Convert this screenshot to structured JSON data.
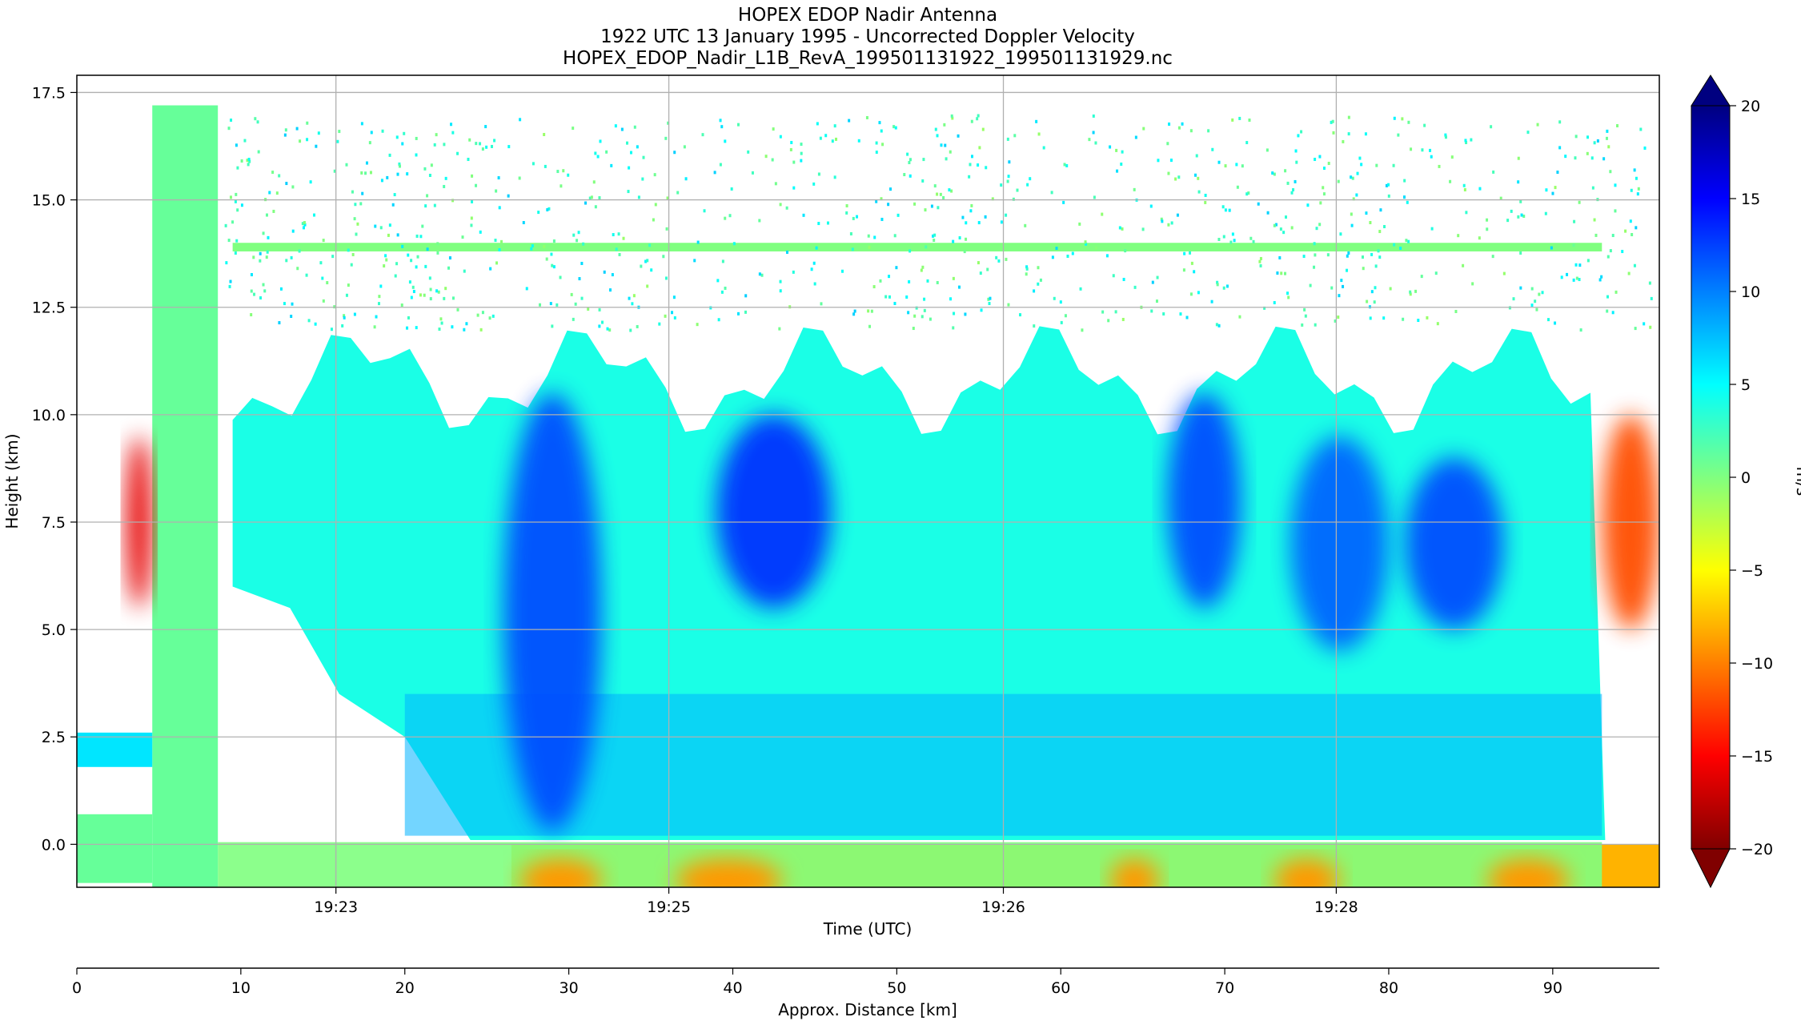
{
  "chart_data": {
    "type": "heatmap",
    "title_lines": [
      "HOPEX EDOP Nadir Antenna",
      "1922 UTC 13 January 1995 - Uncorrected Doppler Velocity",
      "HOPEX_EDOP_Nadir_L1B_RevA_199501131922_199501131929.nc"
    ],
    "xlabel": "Time (UTC)",
    "ylabel": "Height (km)",
    "x2label": "Approx. Distance [km]",
    "colorbar_label": "m/s",
    "ylim": [
      -1.0,
      17.9
    ],
    "yticks": [
      0.0,
      2.5,
      5.0,
      7.5,
      10.0,
      12.5,
      15.0,
      17.5
    ],
    "ytick_labels": [
      "0.0",
      "2.5",
      "5.0",
      "7.5",
      "10.0",
      "12.5",
      "15.0",
      "17.5"
    ],
    "distance_range_km": [
      0,
      96.5
    ],
    "x_time_ticks": [
      {
        "label": "19:23",
        "km": 15.8
      },
      {
        "label": "19:25",
        "km": 36.1
      },
      {
        "label": "19:26",
        "km": 56.5
      },
      {
        "label": "19:28",
        "km": 76.8
      }
    ],
    "distance_ticks": [
      0,
      10,
      20,
      30,
      40,
      50,
      60,
      70,
      80,
      90
    ],
    "colorbar_range": [
      -20,
      20
    ],
    "colorbar_ticks": [
      -20,
      -15,
      -10,
      -5,
      0,
      5,
      10,
      15,
      20
    ],
    "colorbar_tick_labels": [
      "−20",
      "−15",
      "−10",
      "−5",
      "0",
      "5",
      "10",
      "15",
      "20"
    ],
    "grid": true,
    "colormap": "jet",
    "colormap_stops": [
      "#800000",
      "#ff0000",
      "#ff8000",
      "#ffff00",
      "#80ff80",
      "#00ffff",
      "#0080ff",
      "#0000ff",
      "#000080"
    ],
    "features": [
      {
        "name": "calibration-block",
        "km": [
          4.6,
          8.6
        ],
        "height": [
          -1.0,
          17.2
        ],
        "velocity": 1
      },
      {
        "name": "tropopause-echo-line",
        "km": [
          9.5,
          93.0
        ],
        "height": [
          13.8,
          14.0
        ],
        "velocity": 0
      },
      {
        "name": "upper-noise",
        "km": [
          9.0,
          96.0
        ],
        "height": [
          12.0,
          17.0
        ],
        "velocity": 3
      },
      {
        "name": "downdraft-core-1",
        "km": [
          26.0,
          32.0
        ],
        "height": [
          0.3,
          10.5
        ],
        "velocity": 12
      },
      {
        "name": "downdraft-core-2",
        "km": [
          39.0,
          46.0
        ],
        "height": [
          5.5,
          10.0
        ],
        "velocity": 13
      },
      {
        "name": "downdraft-core-3",
        "km": [
          66.5,
          71.0
        ],
        "height": [
          5.5,
          10.5
        ],
        "velocity": 12
      },
      {
        "name": "downdraft-core-4",
        "km": [
          74.0,
          80.0
        ],
        "height": [
          4.5,
          9.5
        ],
        "velocity": 11
      },
      {
        "name": "downdraft-core-5",
        "km": [
          81.0,
          87.0
        ],
        "height": [
          5.0,
          9.0
        ],
        "velocity": 12
      },
      {
        "name": "updraft-region-end",
        "km": [
          93.0,
          96.5
        ],
        "height": [
          5.0,
          10.0
        ],
        "velocity": -12
      },
      {
        "name": "updraft-left-edge",
        "km": [
          3.0,
          4.6
        ],
        "height": [
          5.5,
          9.5
        ],
        "velocity": -16
      },
      {
        "name": "surface-return",
        "km": [
          26.5,
          96.5
        ],
        "height": [
          -1.0,
          0.0
        ],
        "velocity": -8
      }
    ]
  }
}
